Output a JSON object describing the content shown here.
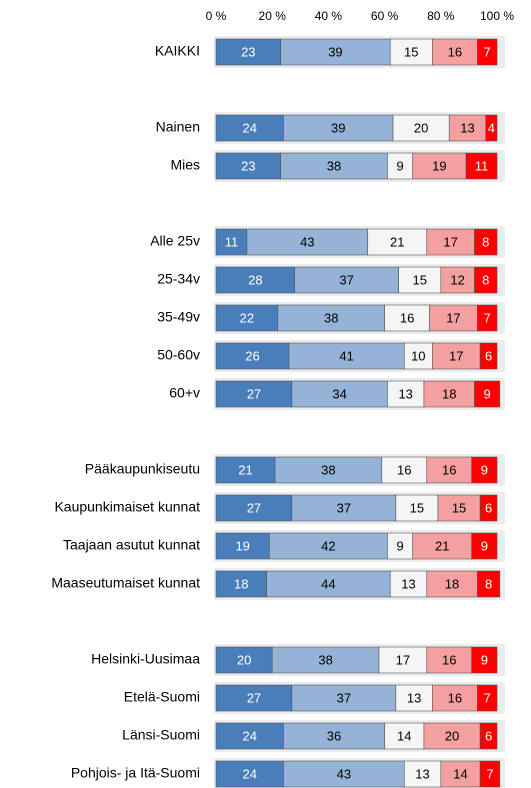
{
  "chart_data": {
    "type": "stacked_barh",
    "categories": [
      "KAIKKI",
      null,
      "Nainen",
      "Mies",
      null,
      "Alle 25v",
      "25-34v",
      "35-49v",
      "50-60v",
      "60+v",
      null,
      "Pääkaupunkiseutu",
      "Kaupunkimaiset kunnat",
      "Taajaan asutut kunnat",
      "Maaseutumaiset kunnat",
      null,
      "Helsinki-Uusimaa",
      "Etelä-Suomi",
      "Länsi-Suomi",
      "Pohjois- ja Itä-Suomi"
    ],
    "series": [
      {
        "color": "#4a7ebb",
        "values": [
          23,
          null,
          24,
          23,
          null,
          11,
          28,
          22,
          26,
          27,
          null,
          21,
          27,
          19,
          18,
          null,
          20,
          27,
          24,
          24
        ]
      },
      {
        "color": "#95b3d7",
        "values": [
          39,
          null,
          39,
          38,
          null,
          43,
          37,
          38,
          41,
          34,
          null,
          38,
          37,
          42,
          44,
          null,
          38,
          37,
          36,
          43
        ]
      },
      {
        "color": "#f5f5f5",
        "values": [
          15,
          null,
          20,
          9,
          null,
          21,
          15,
          16,
          10,
          13,
          null,
          16,
          15,
          9,
          13,
          null,
          17,
          13,
          14,
          13
        ]
      },
      {
        "color": "#f4a0a0",
        "values": [
          16,
          null,
          13,
          19,
          null,
          17,
          12,
          17,
          17,
          18,
          null,
          16,
          15,
          21,
          18,
          null,
          16,
          16,
          20,
          14
        ]
      },
      {
        "color": "#ff0000",
        "values": [
          7,
          null,
          4,
          11,
          null,
          8,
          8,
          7,
          6,
          9,
          null,
          9,
          6,
          9,
          8,
          null,
          9,
          7,
          6,
          7
        ]
      }
    ],
    "xlim": [
      0,
      100
    ],
    "xticks": [
      {
        "value": 0,
        "label": "0 %"
      },
      {
        "value": 20,
        "label": "20 %"
      },
      {
        "value": 40,
        "label": "40 %"
      },
      {
        "value": 60,
        "label": "60 %"
      },
      {
        "value": 80,
        "label": "80 %"
      },
      {
        "value": 100,
        "label": "100 %"
      }
    ],
    "label_colors": [
      "#ffffff",
      "#000000",
      "#000000",
      "#000000",
      "#ffffff"
    ]
  }
}
